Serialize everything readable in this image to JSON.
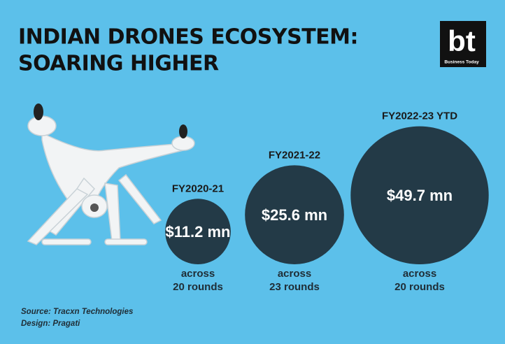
{
  "chart_data": {
    "type": "bubble",
    "title": [
      "INDIAN DRONES ECOSYSTEM:",
      "SOARING HIGHER"
    ],
    "categories": [
      "FY2020-21",
      "FY2021-22",
      "FY2022-23 YTD"
    ],
    "values": [
      11.2,
      25.6,
      49.7
    ],
    "value_labels": [
      "$11.2 mn",
      "$25.6 mn",
      "$49.7 mn"
    ],
    "captions": [
      [
        "across",
        "20 rounds"
      ],
      [
        "across",
        "23 rounds"
      ],
      [
        "across",
        "20 rounds"
      ]
    ],
    "color": "#233a47",
    "source": "Source: Tracxn Technologies",
    "design": "Design: Pragati",
    "logo": {
      "mark": "bt",
      "brand": "Business Today"
    }
  }
}
